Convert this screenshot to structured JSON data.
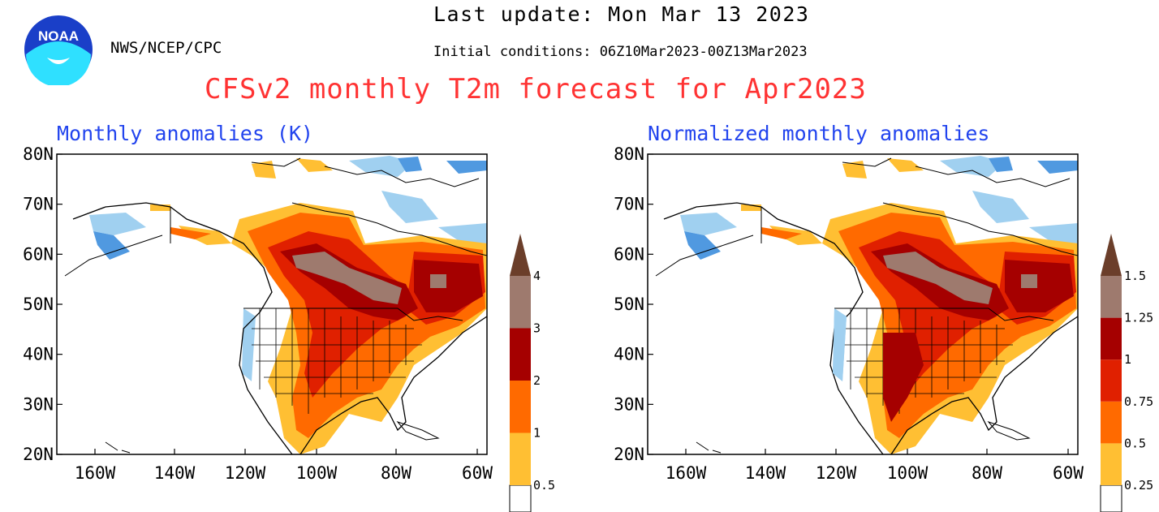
{
  "header": {
    "org": "NWS/NCEP/CPC",
    "last_update": "Last update: Mon Mar 13 2023",
    "initial_conditions": "Initial conditions: 06Z10Mar2023-00Z13Mar2023",
    "title": "CFSv2 monthly T2m forecast for Apr2023",
    "logo_text": "NOAA"
  },
  "panels": [
    {
      "subtitle": "Monthly anomalies (K)",
      "colorbar_labels": [
        "0.5",
        "1",
        "2",
        "3",
        "4"
      ]
    },
    {
      "subtitle": "Normalized monthly anomalies",
      "colorbar_labels": [
        "0.25",
        "0.5",
        "0.75",
        "1",
        "1.25",
        "1.5"
      ]
    }
  ],
  "axes": {
    "lat_labels": [
      "80N",
      "70N",
      "60N",
      "50N",
      "40N",
      "30N",
      "20N"
    ],
    "lon_labels": [
      "160W",
      "140W",
      "120W",
      "100W",
      "80W",
      "60W"
    ]
  },
  "colors": {
    "title": "#ff3333",
    "subtitle": "#2244ee",
    "warm_scale": [
      "#ffbf33",
      "#ff6a00",
      "#e02000",
      "#a50000",
      "#9e7a6e",
      "#6b3e2a"
    ],
    "cool_scale": [
      "#a0d0f0",
      "#5099e0",
      "#2a6fd8"
    ]
  }
}
